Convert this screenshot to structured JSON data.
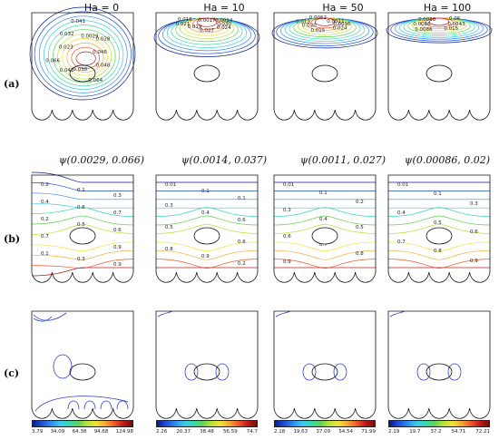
{
  "columns": [
    {
      "title": "Ha = 0",
      "psi_label": "ψ(0.0029, 0.066)",
      "stream_labels": [
        "0.046",
        "0.048",
        "0.064",
        "0.038",
        "0.041",
        "0.066",
        "0.023",
        "0.032",
        "0.041",
        "0.0029",
        "0.028"
      ],
      "temp_labels": [
        "0.2",
        "0.1",
        "0.3",
        "0.4",
        "0.6",
        "0.7",
        "0.2",
        "0.5",
        "0.6",
        "0.7",
        "0.8",
        "0.9",
        "0.1",
        "0.3",
        "0.9"
      ],
      "colorbar_ticks": [
        "3.79",
        "34.09",
        "64.38",
        "94.68",
        "124.98"
      ]
    },
    {
      "title": "Ha = 10",
      "psi_label": "ψ(0.0014, 0.037)",
      "stream_labels": [
        "0.030",
        "0.024",
        "0.027",
        "0.019",
        "0.021",
        "0.018",
        "0.0017",
        "0.0014"
      ],
      "temp_labels": [
        "0.01",
        "0.1",
        "0.1",
        "0.3",
        "0.4",
        "0.6",
        "0.5",
        "0.7",
        "0.6",
        "0.8",
        "0.9",
        "0.2"
      ],
      "colorbar_ticks": [
        "2.26",
        "20.37",
        "38.48",
        "56.59",
        "74.7"
      ]
    },
    {
      "title": "Ha = 50",
      "psi_label": "ψ(0.0011, 0.027)",
      "stream_labels": [
        "0.0096",
        "0.024",
        "0.015",
        "0.020",
        "0.013",
        "0.0062",
        "0.0011"
      ],
      "temp_labels": [
        "0.01",
        "0.1",
        "0.2",
        "0.3",
        "0.4",
        "0.5",
        "0.6",
        "0.7",
        "0.8",
        "0.9"
      ],
      "colorbar_ticks": [
        "2.18",
        "19.63",
        "37.09",
        "54.54",
        "71.99"
      ]
    },
    {
      "title": "Ha = 100",
      "psi_label": "ψ(0.00086, 0.02)",
      "stream_labels": [
        "0.0043",
        "0.015",
        "0.0086",
        "0.0086",
        "0.0060",
        "0.06"
      ],
      "temp_labels": [
        "0.01",
        "0.1",
        "0.3",
        "0.4",
        "0.5",
        "0.6",
        "0.7",
        "0.8",
        "0.9"
      ],
      "colorbar_ticks": [
        "2.19",
        "19.7",
        "37.2",
        "54.71",
        "72.21"
      ]
    }
  ],
  "row_labels": [
    "(a)",
    "(b)",
    "(c)"
  ]
}
